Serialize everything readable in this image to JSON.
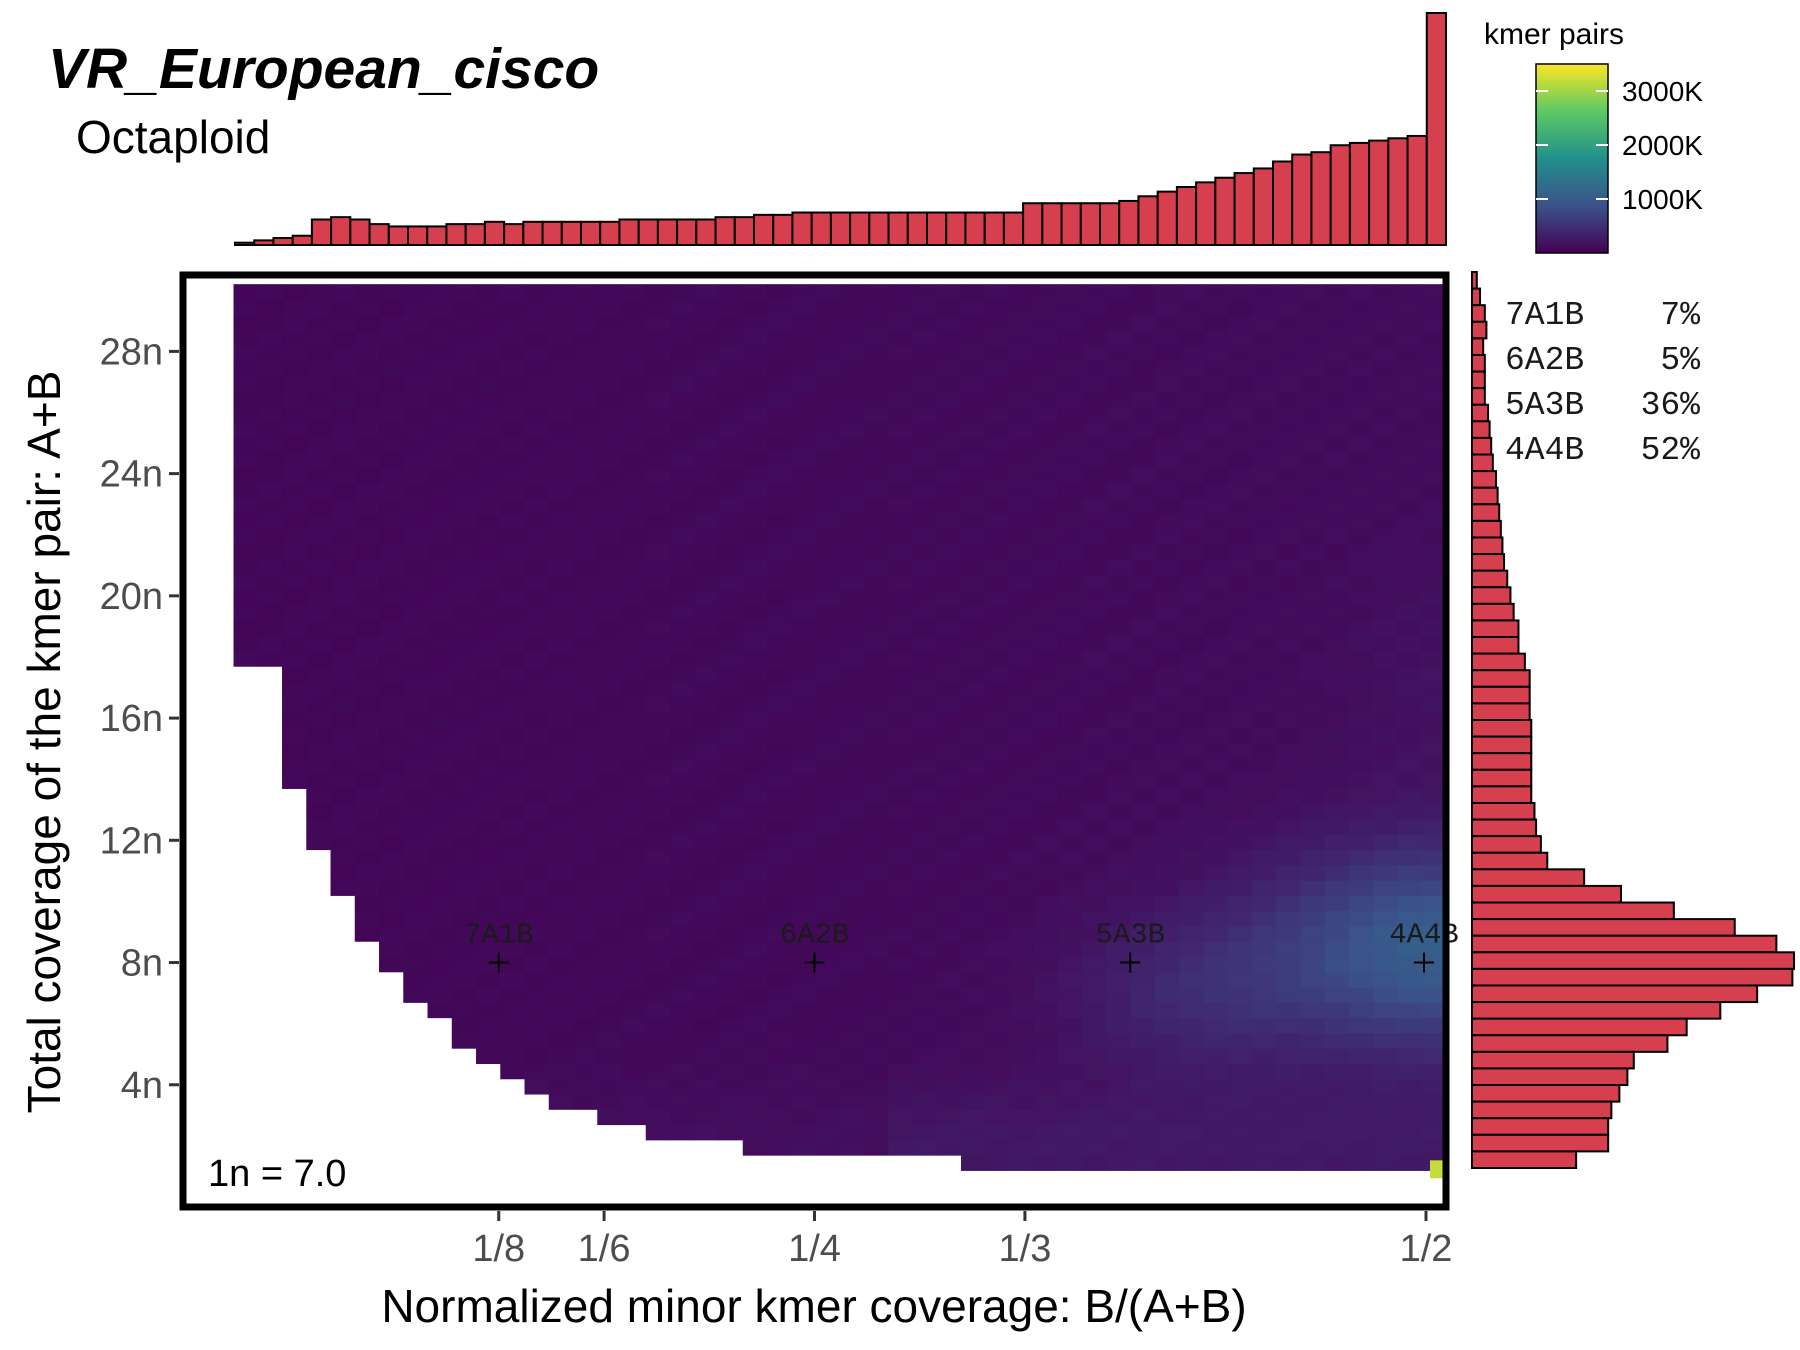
{
  "chart_data": {
    "type": "heatmap",
    "title": "VR_European_cisco",
    "subtitle": "Octaploid",
    "xlabel": "Normalized minor kmer coverage: B/(A+B)",
    "ylabel": "Total coverage of the kmer pair: A+B",
    "x_range": [
      0.0,
      0.5
    ],
    "y_range": [
      0,
      30.5
    ],
    "x_ticks": [
      {
        "value": 0.125,
        "label": "1/8"
      },
      {
        "value": 0.1667,
        "label": "1/6"
      },
      {
        "value": 0.25,
        "label": "1/4"
      },
      {
        "value": 0.3333,
        "label": "1/3"
      },
      {
        "value": 0.5,
        "label": "1/2"
      }
    ],
    "y_ticks": [
      {
        "value": 4,
        "label": "4n"
      },
      {
        "value": 8,
        "label": "8n"
      },
      {
        "value": 12,
        "label": "12n"
      },
      {
        "value": 16,
        "label": "16n"
      },
      {
        "value": 20,
        "label": "20n"
      },
      {
        "value": 24,
        "label": "24n"
      },
      {
        "value": 28,
        "label": "28n"
      }
    ],
    "coverage_label": "1n = 7.0",
    "legend": {
      "title": "kmer pairs",
      "labels": [
        "3000K",
        "2000K",
        "1000K"
      ],
      "values": [
        3000,
        2000,
        1000
      ],
      "max": 3500,
      "colors": [
        "#440154",
        "#3b528b",
        "#21908c",
        "#5dc863",
        "#fde725"
      ]
    },
    "peaks": [
      {
        "label": "7A1B",
        "x": 0.125,
        "y": 8
      },
      {
        "label": "6A2B",
        "x": 0.25,
        "y": 8
      },
      {
        "label": "5A3B",
        "x": 0.375,
        "y": 8
      },
      {
        "label": "4A4B",
        "x": 0.5,
        "y": 8
      }
    ],
    "estimates": [
      {
        "label": "7A1B",
        "percent": "7%"
      },
      {
        "label": "6A2B",
        "percent": "5%"
      },
      {
        "label": "5A3B",
        "percent": "36%"
      },
      {
        "label": "4A4B",
        "percent": "52%"
      }
    ],
    "hotspot": {
      "x": 0.5,
      "y": 1.2,
      "value": 3200
    },
    "top_histogram": {
      "bar_color": "#d6404e",
      "values": [
        1,
        2,
        3,
        4,
        11,
        12,
        11,
        9,
        8,
        8,
        8,
        9,
        9,
        10,
        9,
        10,
        10,
        10,
        10,
        10,
        11,
        11,
        11,
        11,
        11,
        12,
        12,
        13,
        13,
        14,
        14,
        14,
        14,
        14,
        14,
        14,
        14,
        14,
        14,
        14,
        14,
        18,
        18,
        18,
        18,
        18,
        19,
        21,
        23,
        25,
        27,
        29,
        31,
        33,
        36,
        39,
        40,
        43,
        44,
        45,
        46,
        47,
        100
      ]
    },
    "right_histogram": {
      "bar_color": "#d6404e",
      "values": [
        3,
        5,
        8,
        9,
        7,
        8,
        8,
        8,
        10,
        11,
        12,
        13,
        15,
        16,
        17,
        18,
        19,
        20,
        22,
        24,
        26,
        29,
        29,
        33,
        36,
        36,
        36,
        37,
        37,
        37,
        37,
        37,
        39,
        40,
        43,
        47,
        70,
        93,
        126,
        164,
        190,
        201,
        200,
        178,
        155,
        134,
        122,
        101,
        97,
        92,
        87,
        85,
        85,
        65
      ]
    }
  }
}
